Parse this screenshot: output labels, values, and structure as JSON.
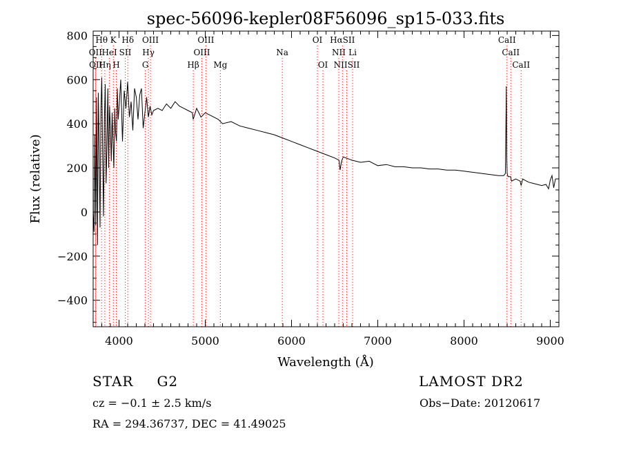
{
  "chart_data": {
    "type": "line",
    "title": "spec-56096-kepler08F56096_sp15-033.fits",
    "xlabel": "Wavelength (Å)",
    "ylabel": "Flux (relative)",
    "xlim": [
      3700,
      9100
    ],
    "ylim": [
      -520,
      820
    ],
    "xticks": [
      4000,
      5000,
      6000,
      7000,
      8000,
      9000
    ],
    "yticks": [
      -400,
      -200,
      0,
      200,
      400,
      600,
      800
    ],
    "grid": false,
    "line_color": "#000000",
    "marker_color": "#ff0000",
    "line_markers": [
      {
        "label": "Hθ",
        "x": 3798,
        "row": 1
      },
      {
        "label": "K",
        "x": 3934,
        "row": 1
      },
      {
        "label": "Hδ",
        "x": 4102,
        "row": 1
      },
      {
        "label": "OIII",
        "x": 4364,
        "row": 1
      },
      {
        "label": "OIII",
        "x": 5007,
        "row": 1
      },
      {
        "label": "OI",
        "x": 6300,
        "row": 1
      },
      {
        "label": "HαSII",
        "x": 6590,
        "row": 1
      },
      {
        "label": "CaII",
        "x": 8498,
        "row": 1
      },
      {
        "label": "OII",
        "x": 3727,
        "row": 2
      },
      {
        "label": "HeI",
        "x": 3889,
        "row": 2
      },
      {
        "label": "SII",
        "x": 4072,
        "row": 2
      },
      {
        "label": "Hγ",
        "x": 4341,
        "row": 2
      },
      {
        "label": "OIII",
        "x": 4960,
        "row": 2
      },
      {
        "label": "Na",
        "x": 5893,
        "row": 2
      },
      {
        "label": "NII",
        "x": 6548,
        "row": 2
      },
      {
        "label": "Li",
        "x": 6708,
        "row": 2
      },
      {
        "label": "CaII",
        "x": 8542,
        "row": 2
      },
      {
        "label": "OII",
        "x": 3730,
        "row": 3
      },
      {
        "label": "Hη",
        "x": 3835,
        "row": 3
      },
      {
        "label": "H",
        "x": 3968,
        "row": 3
      },
      {
        "label": "G",
        "x": 4305,
        "row": 3
      },
      {
        "label": "Hβ",
        "x": 4861,
        "row": 3
      },
      {
        "label": "Mg",
        "x": 5175,
        "row": 3
      },
      {
        "label": "OI",
        "x": 6364,
        "row": 3
      },
      {
        "label": "NIISII",
        "x": 6640,
        "row": 3
      },
      {
        "label": "CaII",
        "x": 8662,
        "row": 3
      }
    ],
    "series": [
      {
        "x": [
          3700,
          3710,
          3720,
          3730,
          3740,
          3750,
          3760,
          3770,
          3780,
          3790,
          3800,
          3810,
          3820,
          3830,
          3840,
          3850,
          3860,
          3870,
          3880,
          3890,
          3900,
          3910,
          3920,
          3930,
          3940,
          3950,
          3960,
          3970,
          3980,
          3990,
          4000,
          4020,
          4040,
          4060,
          4080,
          4100,
          4120,
          4140,
          4160,
          4180,
          4200,
          4220,
          4240,
          4260,
          4280,
          4300,
          4320,
          4340,
          4360,
          4380,
          4400,
          4450,
          4500,
          4550,
          4600,
          4650,
          4700,
          4750,
          4800,
          4850,
          4860,
          4900,
          4950,
          5000,
          5050,
          5100,
          5150,
          5200,
          5300,
          5400,
          5500,
          5600,
          5700,
          5800,
          5900,
          6000,
          6100,
          6200,
          6300,
          6400,
          6500,
          6550,
          6563,
          6580,
          6600,
          6700,
          6800,
          6900,
          7000,
          7100,
          7200,
          7300,
          7400,
          7500,
          7600,
          7700,
          7800,
          7900,
          8000,
          8100,
          8200,
          8300,
          8400,
          8460,
          8480,
          8490,
          8495,
          8500,
          8510,
          8540,
          8550,
          8600,
          8650,
          8662,
          8680,
          8700,
          8750,
          8800,
          8850,
          8900,
          8950,
          8980,
          9000,
          9020,
          9040,
          9060
        ],
        "y": [
          0,
          -90,
          350,
          -60,
          520,
          -150,
          540,
          280,
          -70,
          470,
          610,
          250,
          -20,
          420,
          580,
          130,
          300,
          560,
          200,
          480,
          380,
          230,
          450,
          320,
          200,
          470,
          360,
          320,
          560,
          420,
          470,
          600,
          320,
          550,
          470,
          590,
          430,
          500,
          370,
          560,
          520,
          420,
          530,
          560,
          380,
          450,
          520,
          430,
          480,
          440,
          460,
          470,
          460,
          490,
          470,
          500,
          480,
          470,
          460,
          450,
          420,
          470,
          430,
          450,
          440,
          430,
          420,
          400,
          410,
          390,
          380,
          370,
          360,
          350,
          335,
          320,
          305,
          290,
          275,
          260,
          245,
          235,
          190,
          230,
          250,
          235,
          225,
          230,
          210,
          215,
          205,
          205,
          200,
          200,
          195,
          195,
          190,
          190,
          185,
          180,
          175,
          170,
          165,
          165,
          175,
          570,
          250,
          175,
          160,
          160,
          140,
          150,
          140,
          120,
          150,
          145,
          135,
          130,
          125,
          120,
          125,
          105,
          145,
          165,
          110,
          150
        ]
      }
    ],
    "annotations": {
      "object_class": "STAR",
      "subclass": "G2",
      "survey": "LAMOST DR2",
      "redshift": "cz = −0.1 ± 2.5 km/s",
      "obs_date": "Obs−Date: 20120617",
      "coords": "RA = 294.36737, DEC =  41.49025"
    }
  }
}
